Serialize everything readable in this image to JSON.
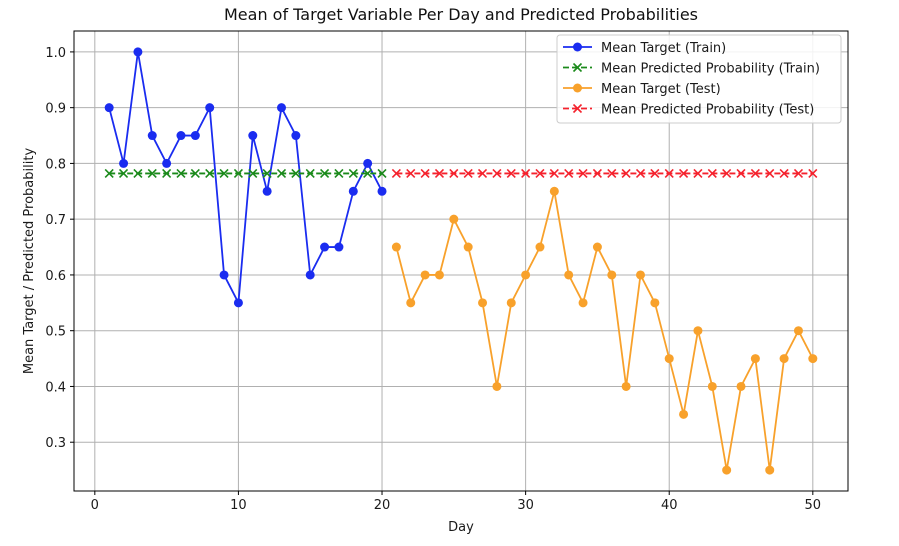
{
  "chart_data": {
    "type": "line",
    "title": "Mean of Target Variable Per Day and Predicted Probabilities",
    "xlabel": "Day",
    "ylabel": "Mean Target / Predicted Probability",
    "xlim": [
      -1.45,
      52.45
    ],
    "ylim": [
      0.2125,
      1.0375
    ],
    "xticks": [
      0,
      10,
      20,
      30,
      40,
      50
    ],
    "xtick_labels": [
      "0",
      "10",
      "20",
      "30",
      "40",
      "50"
    ],
    "yticks": [
      0.3,
      0.4,
      0.5,
      0.6,
      0.7,
      0.8,
      0.9,
      1.0
    ],
    "ytick_labels": [
      "0.3",
      "0.4",
      "0.5",
      "0.6",
      "0.7",
      "0.8",
      "0.9",
      "1.0"
    ],
    "grid": true,
    "legend_position": "top-right",
    "series": [
      {
        "name": "Mean Target (Train)",
        "color": "#1a2cf0",
        "marker": "circle",
        "linestyle": "solid",
        "x": [
          1,
          2,
          3,
          4,
          5,
          6,
          7,
          8,
          9,
          10,
          11,
          12,
          13,
          14,
          15,
          16,
          17,
          18,
          19,
          20
        ],
        "values": [
          0.9,
          0.8,
          1.0,
          0.85,
          0.8,
          0.85,
          0.85,
          0.9,
          0.6,
          0.55,
          0.85,
          0.75,
          0.9,
          0.85,
          0.6,
          0.65,
          0.65,
          0.75,
          0.8,
          0.75
        ]
      },
      {
        "name": "Mean Predicted Probability (Train)",
        "color": "#1b8a1b",
        "marker": "x",
        "linestyle": "dashed",
        "x": [
          1,
          2,
          3,
          4,
          5,
          6,
          7,
          8,
          9,
          10,
          11,
          12,
          13,
          14,
          15,
          16,
          17,
          18,
          19,
          20
        ],
        "values": [
          0.782,
          0.782,
          0.782,
          0.782,
          0.782,
          0.782,
          0.782,
          0.782,
          0.782,
          0.782,
          0.782,
          0.782,
          0.782,
          0.782,
          0.782,
          0.782,
          0.782,
          0.782,
          0.782,
          0.782
        ]
      },
      {
        "name": "Mean Target (Test)",
        "color": "#f8a12b",
        "marker": "circle",
        "linestyle": "solid",
        "x": [
          21,
          22,
          23,
          24,
          25,
          26,
          27,
          28,
          29,
          30,
          31,
          32,
          33,
          34,
          35,
          36,
          37,
          38,
          39,
          40,
          41,
          42,
          43,
          44,
          45,
          46,
          47,
          48,
          49,
          50
        ],
        "values": [
          0.65,
          0.55,
          0.6,
          0.6,
          0.7,
          0.65,
          0.55,
          0.4,
          0.55,
          0.6,
          0.65,
          0.75,
          0.6,
          0.55,
          0.65,
          0.6,
          0.4,
          0.6,
          0.55,
          0.45,
          0.35,
          0.5,
          0.4,
          0.25,
          0.4,
          0.45,
          0.25,
          0.45,
          0.5,
          0.45
        ]
      },
      {
        "name": "Mean Predicted Probability (Test)",
        "color": "#f5222d",
        "marker": "x",
        "linestyle": "dashed",
        "x": [
          21,
          22,
          23,
          24,
          25,
          26,
          27,
          28,
          29,
          30,
          31,
          32,
          33,
          34,
          35,
          36,
          37,
          38,
          39,
          40,
          41,
          42,
          43,
          44,
          45,
          46,
          47,
          48,
          49,
          50
        ],
        "values": [
          0.782,
          0.782,
          0.782,
          0.782,
          0.782,
          0.782,
          0.782,
          0.782,
          0.782,
          0.782,
          0.782,
          0.782,
          0.782,
          0.782,
          0.782,
          0.782,
          0.782,
          0.782,
          0.782,
          0.782,
          0.782,
          0.782,
          0.782,
          0.782,
          0.782,
          0.782,
          0.782,
          0.782,
          0.782,
          0.782
        ]
      }
    ]
  }
}
